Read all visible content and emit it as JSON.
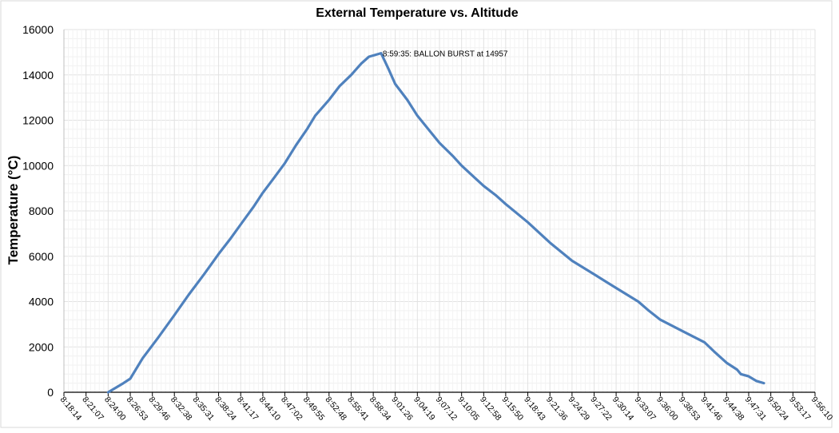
{
  "chart_data": {
    "type": "line",
    "title": "External Temperature vs. Altitude",
    "xlabel": "",
    "ylabel": "Temperature (°C)",
    "ylim": [
      0,
      16000
    ],
    "yticks": [
      0,
      2000,
      4000,
      6000,
      8000,
      10000,
      12000,
      14000,
      16000
    ],
    "xlim": [
      "8:18:14",
      "9:56:10"
    ],
    "xticks": [
      "8:18:14",
      "8:21:07",
      "8:24:00",
      "8:26:53",
      "8:29:46",
      "8:32:38",
      "8:35:31",
      "8:38:24",
      "8:41:17",
      "8:44:10",
      "8:47:02",
      "8:49:55",
      "8:52:48",
      "8:55:41",
      "8:58:34",
      "9:01:26",
      "9:04:19",
      "9:07:12",
      "9:10:05",
      "9:12:58",
      "9:15:50",
      "9:18:43",
      "9:21:36",
      "9:24:29",
      "9:27:22",
      "9:30:14",
      "9:33:07",
      "9:36:00",
      "9:38:53",
      "9:41:46",
      "9:44:38",
      "9:47:31",
      "9:50:24",
      "9:53:17",
      "9:56:10"
    ],
    "grid": true,
    "line_color": "#4f81bd",
    "series": [
      {
        "x": [
          "8:24:00",
          "8:26:00",
          "8:26:53",
          "8:28:30",
          "8:30:30",
          "8:32:38",
          "8:34:30",
          "8:36:30",
          "8:38:24",
          "8:40:00",
          "8:41:17",
          "8:43:00",
          "8:44:10",
          "8:45:30",
          "8:47:02",
          "8:48:30",
          "8:49:55",
          "8:51:00",
          "8:52:48",
          "8:54:10",
          "8:55:41",
          "8:57:00",
          "8:58:00",
          "8:59:35",
          "9:00:30",
          "9:01:26",
          "9:03:00",
          "9:04:19",
          "9:06:00",
          "9:07:12",
          "9:09:00",
          "9:10:05",
          "9:12:00",
          "9:12:58",
          "9:14:30",
          "9:15:50",
          "9:18:43",
          "9:21:36",
          "9:24:29",
          "9:27:22",
          "9:30:14",
          "9:33:07",
          "9:34:30",
          "9:36:00",
          "9:38:53",
          "9:41:46",
          "9:43:00",
          "9:44:38",
          "9:46:00",
          "9:46:30",
          "9:47:31",
          "9:48:30",
          "9:49:30"
        ],
        "values": [
          0,
          400,
          600,
          1500,
          2400,
          3400,
          4300,
          5200,
          6100,
          6800,
          7400,
          8200,
          8800,
          9400,
          10100,
          10900,
          11600,
          12200,
          12900,
          13500,
          14000,
          14500,
          14800,
          14957,
          14300,
          13600,
          12900,
          12200,
          11500,
          11000,
          10400,
          10000,
          9400,
          9100,
          8700,
          8300,
          7500,
          6600,
          5800,
          5200,
          4600,
          4000,
          3600,
          3200,
          2700,
          2200,
          1800,
          1300,
          1000,
          800,
          700,
          500,
          400
        ]
      }
    ],
    "annotations": [
      {
        "text": "8:59:35: BALLON BURST at 14957",
        "x": "8:59:35",
        "y": 14957
      }
    ]
  }
}
